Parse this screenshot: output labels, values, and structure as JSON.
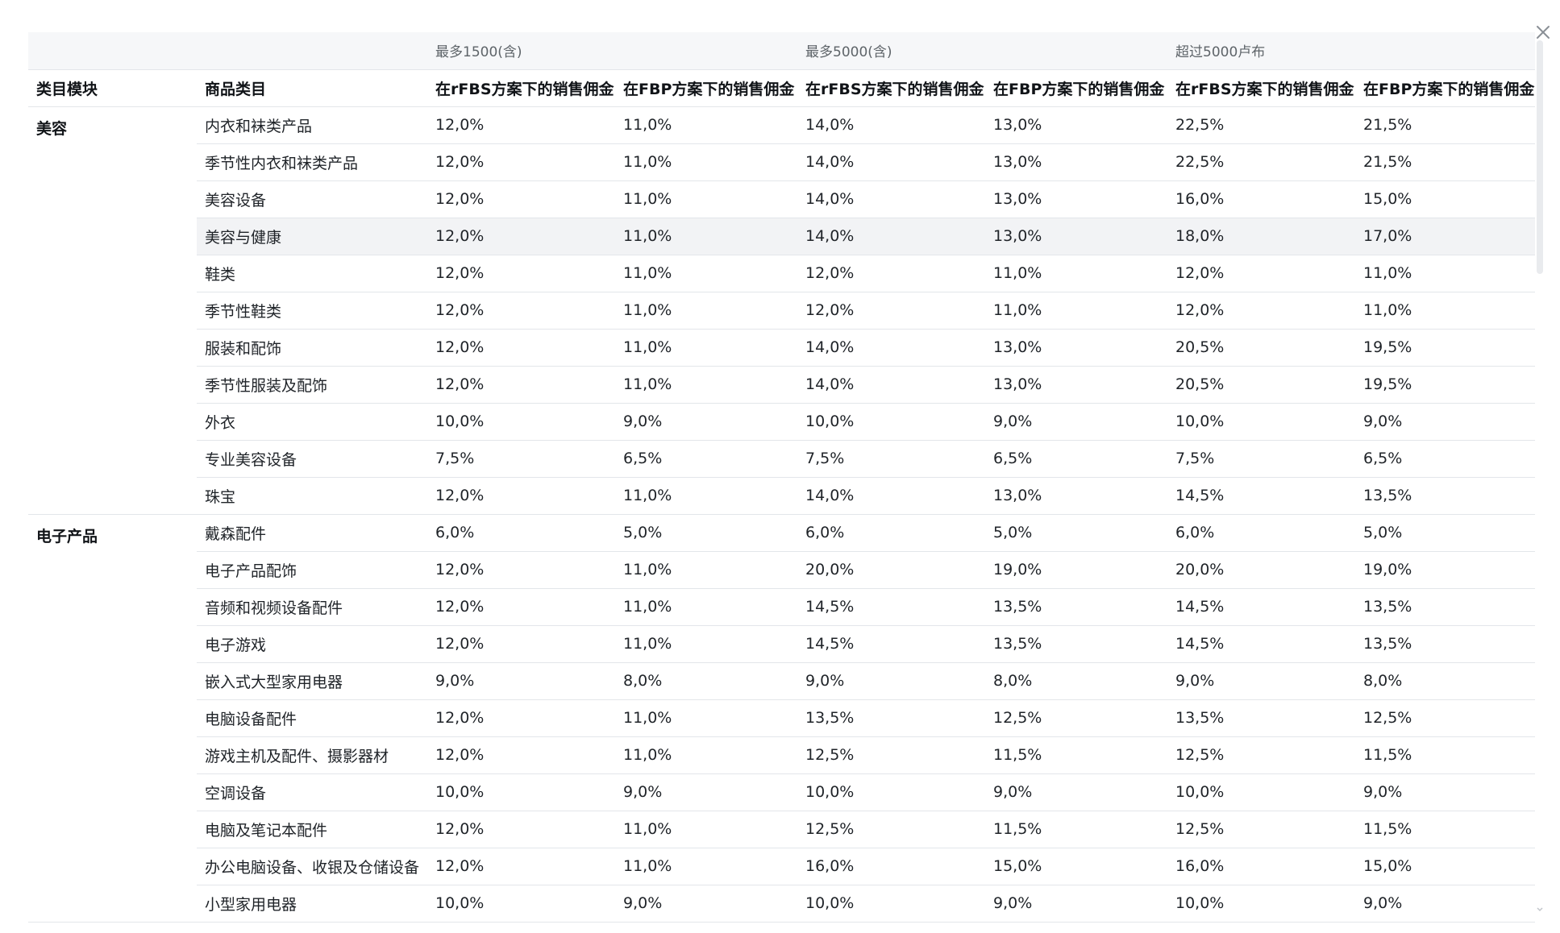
{
  "header": {
    "groups": [
      "最多1500(含)",
      "最多5000(含)",
      "超过5000卢布"
    ],
    "columns": [
      "类目模块",
      "商品类目",
      "在rFBS方案下的销售佣金",
      "在FBP方案下的销售佣金",
      "在rFBS方案下的销售佣金",
      "在FBP方案下的销售佣金",
      "在rFBS方案下的销售佣金",
      "在FBP方案下的销售佣金"
    ]
  },
  "modules": [
    {
      "name": "美容",
      "rows": [
        {
          "category": "内衣和袜类产品",
          "values": [
            "12,0%",
            "11,0%",
            "14,0%",
            "13,0%",
            "22,5%",
            "21,5%"
          ]
        },
        {
          "category": "季节性内衣和袜类产品",
          "values": [
            "12,0%",
            "11,0%",
            "14,0%",
            "13,0%",
            "22,5%",
            "21,5%"
          ]
        },
        {
          "category": "美容设备",
          "values": [
            "12,0%",
            "11,0%",
            "14,0%",
            "13,0%",
            "16,0%",
            "15,0%"
          ]
        },
        {
          "category": "美容与健康",
          "values": [
            "12,0%",
            "11,0%",
            "14,0%",
            "13,0%",
            "18,0%",
            "17,0%"
          ],
          "highlighted": true
        },
        {
          "category": "鞋类",
          "values": [
            "12,0%",
            "11,0%",
            "12,0%",
            "11,0%",
            "12,0%",
            "11,0%"
          ]
        },
        {
          "category": "季节性鞋类",
          "values": [
            "12,0%",
            "11,0%",
            "12,0%",
            "11,0%",
            "12,0%",
            "11,0%"
          ]
        },
        {
          "category": "服装和配饰",
          "values": [
            "12,0%",
            "11,0%",
            "14,0%",
            "13,0%",
            "20,5%",
            "19,5%"
          ]
        },
        {
          "category": "季节性服装及配饰",
          "values": [
            "12,0%",
            "11,0%",
            "14,0%",
            "13,0%",
            "20,5%",
            "19,5%"
          ]
        },
        {
          "category": "外衣",
          "values": [
            "10,0%",
            "9,0%",
            "10,0%",
            "9,0%",
            "10,0%",
            "9,0%"
          ]
        },
        {
          "category": "专业美容设备",
          "values": [
            "7,5%",
            "6,5%",
            "7,5%",
            "6,5%",
            "7,5%",
            "6,5%"
          ]
        },
        {
          "category": "珠宝",
          "values": [
            "12,0%",
            "11,0%",
            "14,0%",
            "13,0%",
            "14,5%",
            "13,5%"
          ]
        }
      ]
    },
    {
      "name": "电子产品",
      "rows": [
        {
          "category": "戴森配件",
          "values": [
            "6,0%",
            "5,0%",
            "6,0%",
            "5,0%",
            "6,0%",
            "5,0%"
          ]
        },
        {
          "category": "电子产品配饰",
          "values": [
            "12,0%",
            "11,0%",
            "20,0%",
            "19,0%",
            "20,0%",
            "19,0%"
          ]
        },
        {
          "category": "音频和视频设备配件",
          "values": [
            "12,0%",
            "11,0%",
            "14,5%",
            "13,5%",
            "14,5%",
            "13,5%"
          ]
        },
        {
          "category": "电子游戏",
          "values": [
            "12,0%",
            "11,0%",
            "14,5%",
            "13,5%",
            "14,5%",
            "13,5%"
          ]
        },
        {
          "category": "嵌入式大型家用电器",
          "values": [
            "9,0%",
            "8,0%",
            "9,0%",
            "8,0%",
            "9,0%",
            "8,0%"
          ]
        },
        {
          "category": "电脑设备配件",
          "values": [
            "12,0%",
            "11,0%",
            "13,5%",
            "12,5%",
            "13,5%",
            "12,5%"
          ]
        },
        {
          "category": "游戏主机及配件、摄影器材",
          "values": [
            "12,0%",
            "11,0%",
            "12,5%",
            "11,5%",
            "12,5%",
            "11,5%"
          ]
        },
        {
          "category": "空调设备",
          "values": [
            "10,0%",
            "9,0%",
            "10,0%",
            "9,0%",
            "10,0%",
            "9,0%"
          ]
        },
        {
          "category": "电脑及笔记本配件",
          "values": [
            "12,0%",
            "11,0%",
            "12,5%",
            "11,5%",
            "12,5%",
            "11,5%"
          ]
        },
        {
          "category": "办公电脑设备、收银及仓储设备",
          "values": [
            "12,0%",
            "11,0%",
            "16,0%",
            "15,0%",
            "16,0%",
            "15,0%"
          ]
        },
        {
          "category": "小型家用电器",
          "values": [
            "10,0%",
            "9,0%",
            "10,0%",
            "9,0%",
            "10,0%",
            "9,0%"
          ]
        }
      ]
    }
  ],
  "icons": {
    "close": "close-icon",
    "scroll_down": "chevron-down-icon"
  },
  "colors": {
    "header_bg": "#f6f7f9",
    "row_highlight": "#f2f3f5",
    "divider": "#e3e6ea"
  }
}
